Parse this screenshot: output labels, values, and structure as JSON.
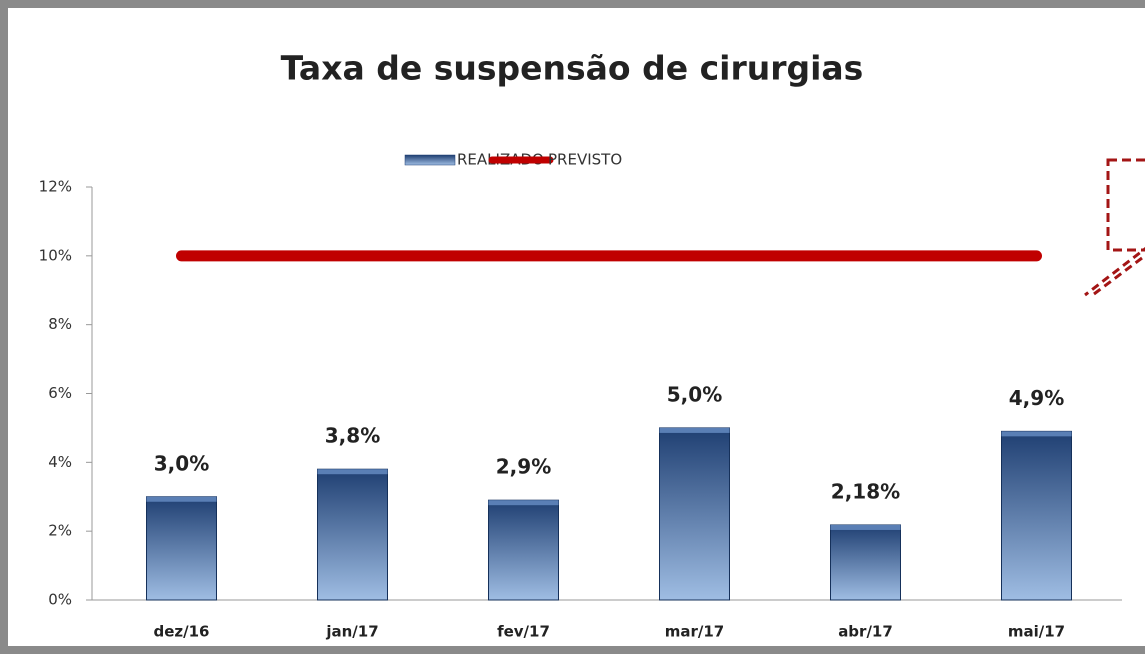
{
  "chart_data": {
    "type": "bar",
    "title": "Taxa de suspensão de cirurgias",
    "categories": [
      "dez/16",
      "jan/17",
      "fev/17",
      "mar/17",
      "abr/17",
      "mai/17"
    ],
    "series": [
      {
        "name": "REALIZADO",
        "color": "#1f3f72",
        "values": [
          3.0,
          3.8,
          2.9,
          5.0,
          2.18,
          4.9
        ],
        "value_labels": [
          "3,0%",
          "3,8%",
          "2,9%",
          "5,0%",
          "2,18%",
          "4,9%"
        ]
      },
      {
        "name": "PREVISTO",
        "color": "#c00000",
        "type": "line",
        "values": [
          10,
          10,
          10,
          10,
          10,
          10
        ]
      }
    ],
    "ylim": [
      0,
      12
    ],
    "yticks": [
      {
        "value": 0,
        "label": "0%"
      },
      {
        "value": 2,
        "label": "2%"
      },
      {
        "value": 4,
        "label": "4%"
      },
      {
        "value": 6,
        "label": "6%"
      },
      {
        "value": 8,
        "label": "8%"
      },
      {
        "value": 10,
        "label": "10%"
      },
      {
        "value": 12,
        "label": "12%"
      }
    ],
    "legend": "top"
  }
}
